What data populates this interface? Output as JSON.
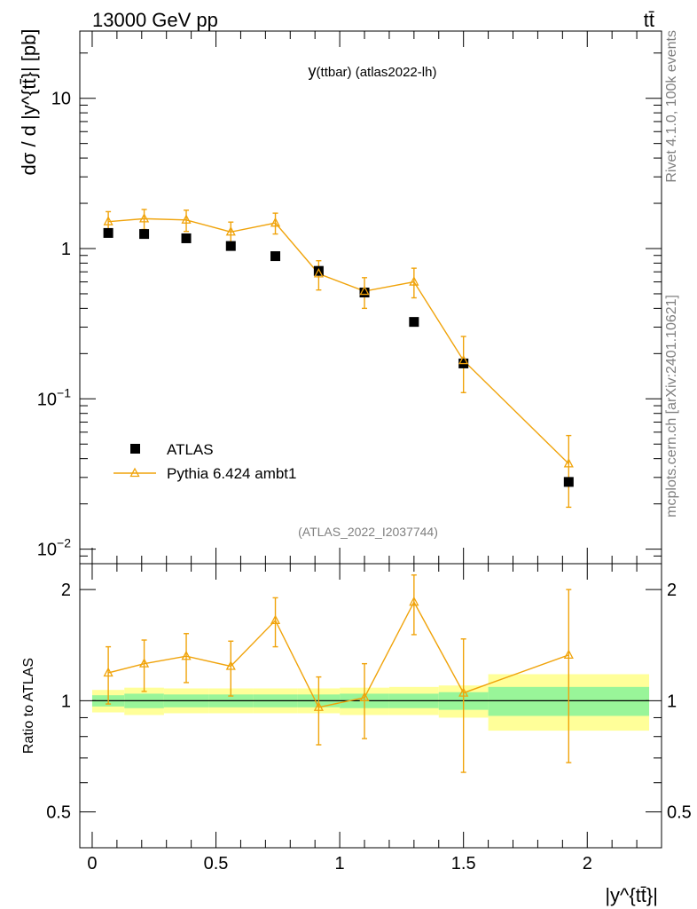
{
  "header": {
    "left": "13000 GeV pp",
    "right": "tt̄"
  },
  "side_labels": {
    "rivet": "Rivet 4.1.0,  100k events",
    "mcplots": "mcplots.cern.ch [arXiv:2401.10621]"
  },
  "chart_data": {
    "type": "scatter",
    "title": "y(ttbar) (atlas2022-lh)",
    "title_main": "y",
    "title_sub": "(ttbar) (atlas2022-lh)",
    "watermark": "(ATLAS_2022_I2037744)",
    "xlabel": "|y^{tt̄}|",
    "ylabel": "dσ / d |y^{tt̄}| [pb]",
    "ratio_ylabel": "Ratio to ATLAS",
    "xlim": [
      -0.05,
      2.3
    ],
    "ylim": [
      0.008,
      28
    ],
    "yscale": "log",
    "ratio_ylim": [
      0.4,
      2.35
    ],
    "ratio_yscale": "log",
    "x_ticks": [
      {
        "v": 0,
        "label": "0"
      },
      {
        "v": 0.5,
        "label": "0.5"
      },
      {
        "v": 1,
        "label": "1"
      },
      {
        "v": 1.5,
        "label": "1.5"
      },
      {
        "v": 2,
        "label": "2"
      }
    ],
    "y_ticks": [
      {
        "v": 0.01,
        "base": "10",
        "exp": "−2"
      },
      {
        "v": 0.1,
        "base": "10",
        "exp": "−1"
      },
      {
        "v": 1,
        "base": "1",
        "exp": ""
      },
      {
        "v": 10,
        "base": "10",
        "exp": ""
      }
    ],
    "ratio_ticks": [
      {
        "v": 0.5,
        "label": "0.5"
      },
      {
        "v": 1,
        "label": "1"
      },
      {
        "v": 2,
        "label": "2"
      }
    ],
    "bin_edges": [
      0.0,
      0.13,
      0.29,
      0.47,
      0.65,
      0.83,
      1.0,
      1.2,
      1.4,
      1.6,
      2.25
    ],
    "legend": [
      {
        "name": "ATLAS",
        "marker": "square",
        "color": "#000000"
      },
      {
        "name": "Pythia 6.424 ambt1",
        "marker": "triangle",
        "color": "#f0a30a"
      }
    ],
    "series": [
      {
        "name": "ATLAS",
        "x": [
          0.065,
          0.21,
          0.38,
          0.56,
          0.74,
          0.915,
          1.1,
          1.3,
          1.5,
          1.925
        ],
        "y": [
          1.27,
          1.25,
          1.17,
          1.04,
          0.89,
          0.71,
          0.51,
          0.325,
          0.172,
          0.028
        ]
      },
      {
        "name": "Pythia 6.424 ambt1",
        "x": [
          0.065,
          0.21,
          0.38,
          0.56,
          0.74,
          0.915,
          1.1,
          1.3,
          1.5,
          1.925
        ],
        "y": [
          1.51,
          1.58,
          1.55,
          1.29,
          1.48,
          0.68,
          0.52,
          0.6,
          0.18,
          0.037
        ],
        "yerr_lo": [
          1.25,
          1.34,
          1.3,
          1.08,
          1.25,
          0.53,
          0.4,
          0.47,
          0.11,
          0.019
        ],
        "yerr_hi": [
          1.76,
          1.82,
          1.8,
          1.5,
          1.72,
          0.83,
          0.64,
          0.74,
          0.26,
          0.057
        ]
      }
    ],
    "ratio": {
      "y": [
        1.19,
        1.26,
        1.32,
        1.24,
        1.65,
        0.96,
        1.02,
        1.85,
        1.05,
        1.33
      ],
      "yerr_lo": [
        0.98,
        1.06,
        1.12,
        1.03,
        1.4,
        0.76,
        0.79,
        1.51,
        0.64,
        0.68
      ],
      "yerr_hi": [
        1.4,
        1.46,
        1.52,
        1.45,
        1.9,
        1.16,
        1.26,
        2.19,
        1.47,
        2.0
      ],
      "band_inner_lo": [
        0.965,
        0.955,
        0.96,
        0.96,
        0.96,
        0.96,
        0.955,
        0.955,
        0.945,
        0.91
      ],
      "band_inner_hi": [
        1.035,
        1.045,
        1.04,
        1.04,
        1.04,
        1.04,
        1.045,
        1.045,
        1.055,
        1.09
      ],
      "band_outer_lo": [
        0.93,
        0.915,
        0.925,
        0.925,
        0.925,
        0.925,
        0.915,
        0.915,
        0.9,
        0.83
      ],
      "band_outer_hi": [
        1.07,
        1.085,
        1.08,
        1.08,
        1.08,
        1.08,
        1.085,
        1.09,
        1.1,
        1.18
      ]
    }
  }
}
